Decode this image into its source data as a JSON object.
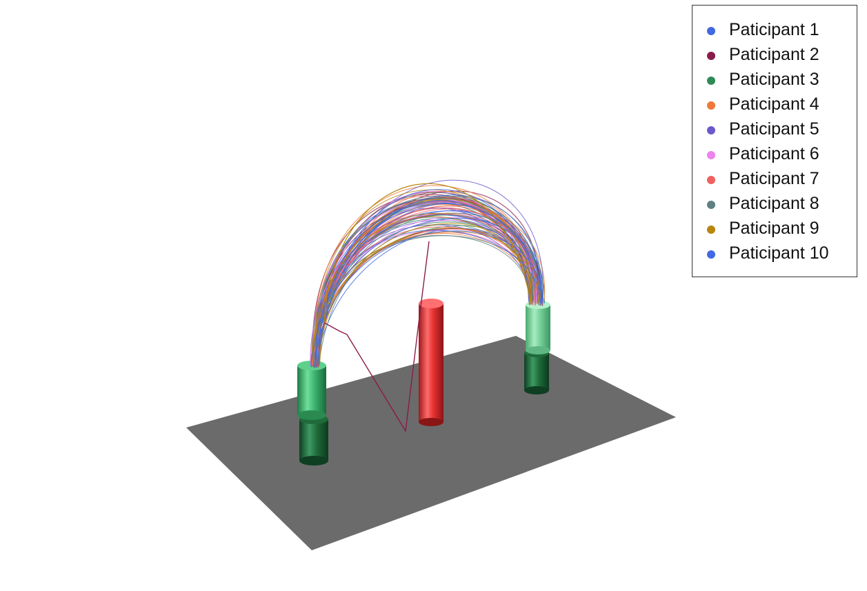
{
  "legend": {
    "items": [
      {
        "label": "Paticipant 1",
        "color": "#4169E1"
      },
      {
        "label": "Paticipant 2",
        "color": "#8B1A4A"
      },
      {
        "label": "Paticipant 3",
        "color": "#2E8B57"
      },
      {
        "label": "Paticipant 4",
        "color": "#F07838"
      },
      {
        "label": "Paticipant 5",
        "color": "#6A5ACD"
      },
      {
        "label": "Paticipant 6",
        "color": "#EE82EE"
      },
      {
        "label": "Paticipant 7",
        "color": "#F06060"
      },
      {
        "label": "Paticipant 8",
        "color": "#5F8080"
      },
      {
        "label": "Paticipant 9",
        "color": "#B8860B"
      },
      {
        "label": "Paticipant 10",
        "color": "#4169E1"
      }
    ]
  },
  "scene": {
    "floor_color": "#6B6B6B",
    "obstacle_color": "#E53030",
    "start_post_color": "#3CB371",
    "end_post_color": "#6FCF97",
    "post_base_color": "#1F6B3A",
    "trajectories_per_participant": 8
  }
}
